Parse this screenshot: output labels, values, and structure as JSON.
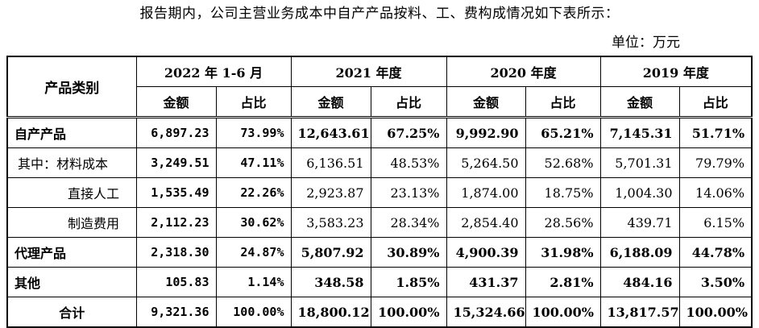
{
  "intro": "报告期内，公司主营业务成本中自产产品按料、工、费构成情况如下表所示：",
  "unit": "单位：万元",
  "table": {
    "category_header": "产品类别",
    "periods": [
      "2022 年 1-6 月",
      "2021 年度",
      "2020 年度",
      "2019 年度"
    ],
    "amount_label": "金额",
    "ratio_label": "占比",
    "rows": [
      {
        "label": "自产产品",
        "values": [
          "6,897.23",
          "73.99%",
          "12,643.61",
          "67.25%",
          "9,992.90",
          "65.21%",
          "7,145.31",
          "51.71%"
        ]
      },
      {
        "label": "其中：材料成本",
        "values": [
          "3,249.51",
          "47.11%",
          "6,136.51",
          "48.53%",
          "5,264.50",
          "52.68%",
          "5,701.31",
          "79.79%"
        ]
      },
      {
        "label": "直接人工",
        "values": [
          "1,535.49",
          "22.26%",
          "2,923.87",
          "23.13%",
          "1,874.00",
          "18.75%",
          "1,004.30",
          "14.06%"
        ]
      },
      {
        "label": "制造费用",
        "values": [
          "2,112.23",
          "30.62%",
          "3,583.23",
          "28.34%",
          "2,854.40",
          "28.56%",
          "439.71",
          "6.15%"
        ]
      },
      {
        "label": "代理产品",
        "values": [
          "2,318.30",
          "24.87%",
          "5,807.92",
          "30.89%",
          "4,900.39",
          "31.98%",
          "6,188.09",
          "44.78%"
        ]
      },
      {
        "label": "其他",
        "values": [
          "105.83",
          "1.14%",
          "348.58",
          "1.85%",
          "431.37",
          "2.81%",
          "484.16",
          "3.50%"
        ]
      },
      {
        "label": "合计",
        "values": [
          "9,321.36",
          "100.00%",
          "18,800.12",
          "100.00%",
          "15,324.66",
          "100.00%",
          "13,817.57",
          "100.00%"
        ]
      }
    ]
  }
}
